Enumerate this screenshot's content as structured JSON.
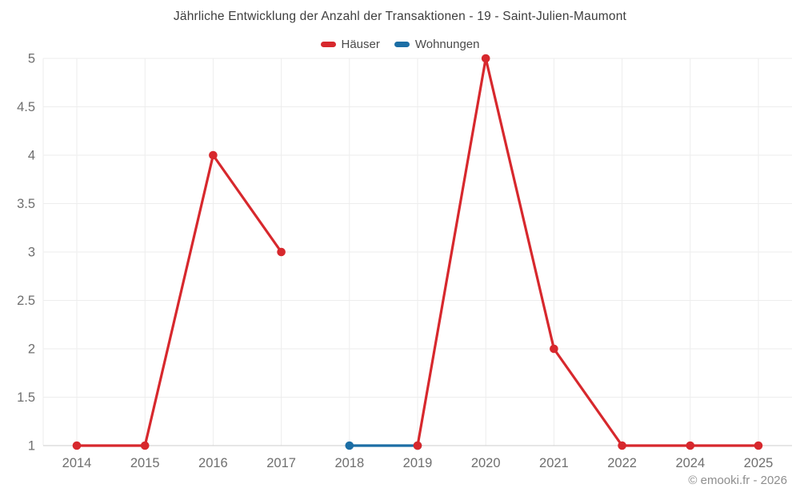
{
  "title": "Jährliche Entwicklung der Anzahl der Transaktionen - 19 - Saint-Julien-Maumont",
  "footer": "© emooki.fr - 2026",
  "legend": [
    {
      "label": "Häuser",
      "color": "#d7282d"
    },
    {
      "label": "Wohnungen",
      "color": "#1c6ea5"
    }
  ],
  "colors": {
    "hauser_red": "#d7282d",
    "wohnungen_blue": "#1c6ea5",
    "gridline": "#ededed",
    "axis_line": "#d6d6d6",
    "tick_label": "#6f6f6f",
    "title_text": "#3e3e3e",
    "footer_text": "#8e8e8e"
  },
  "chart_data": {
    "type": "line",
    "title": "Jährliche Entwicklung der Anzahl der Transaktionen - 19 - Saint-Julien-Maumont",
    "categories": [
      "2014",
      "2015",
      "2016",
      "2017",
      "2018",
      "2019",
      "2020",
      "2021",
      "2022",
      "2024",
      "2025"
    ],
    "series": [
      {
        "name": "Häuser",
        "color": "#d7282d",
        "values": [
          1,
          1,
          4,
          3,
          null,
          1,
          5,
          2,
          1,
          1,
          1
        ]
      },
      {
        "name": "Wohnungen",
        "color": "#1c6ea5",
        "values": [
          null,
          null,
          null,
          null,
          1,
          1,
          null,
          null,
          null,
          null,
          null
        ]
      }
    ],
    "yticks": [
      1,
      1.5,
      2,
      2.5,
      3,
      3.5,
      4,
      4.5,
      5
    ],
    "ylim": [
      1,
      5
    ],
    "xlabel": "",
    "ylabel": "",
    "grid": true,
    "legend_position": "top",
    "marker": "circle"
  }
}
